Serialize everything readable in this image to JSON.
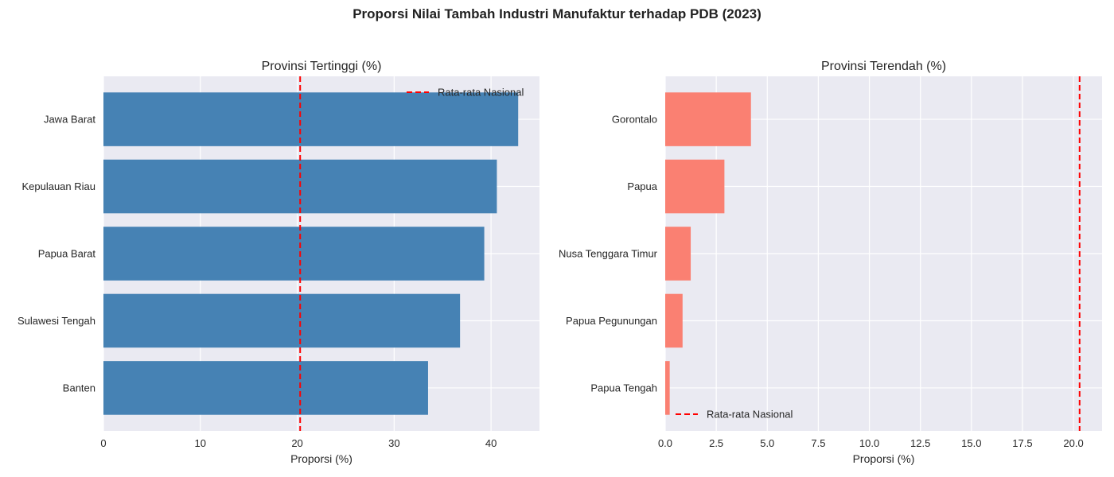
{
  "figure": {
    "title": "Proporsi Nilai Tambah Industri Manufaktur terhadap PDB (2023)"
  },
  "chart_data": [
    {
      "type": "bar",
      "orientation": "horizontal",
      "title": "Provinsi Tertinggi (%)",
      "xlabel": "Proporsi (%)",
      "ylabel": "",
      "categories": [
        "Jawa Barat",
        "Kepulauan Riau",
        "Papua Barat",
        "Sulawesi Tengah",
        "Banten"
      ],
      "values": [
        42.8,
        40.6,
        39.3,
        36.8,
        33.5
      ],
      "xlim": [
        0,
        45
      ],
      "xticks": [
        0,
        10,
        20,
        30,
        40
      ],
      "xtick_labels": [
        "0",
        "10",
        "20",
        "30",
        "40"
      ],
      "bar_color": "#4682b4",
      "reference_line": {
        "label": "Rata-rata Nasional",
        "value": 20.3,
        "color": "#ff0000",
        "style": "dashed"
      },
      "legend_position": "top-right",
      "grid": true
    },
    {
      "type": "bar",
      "orientation": "horizontal",
      "title": "Provinsi Terendah (%)",
      "xlabel": "Proporsi (%)",
      "ylabel": "",
      "categories": [
        "Gorontalo",
        "Papua",
        "Nusa Tenggara Timur",
        "Papua Pegunungan",
        "Papua Tengah"
      ],
      "values": [
        4.2,
        2.9,
        1.25,
        0.85,
        0.22
      ],
      "xlim": [
        0,
        21.4
      ],
      "xticks": [
        0,
        2.5,
        5,
        7.5,
        10,
        12.5,
        15,
        17.5,
        20
      ],
      "xtick_labels": [
        "0.0",
        "2.5",
        "5.0",
        "7.5",
        "10.0",
        "12.5",
        "15.0",
        "17.5",
        "20.0"
      ],
      "bar_color": "#fa8072",
      "reference_line": {
        "label": "Rata-rata Nasional",
        "value": 20.3,
        "color": "#ff0000",
        "style": "dashed"
      },
      "legend_position": "bottom-left",
      "grid": true
    }
  ]
}
